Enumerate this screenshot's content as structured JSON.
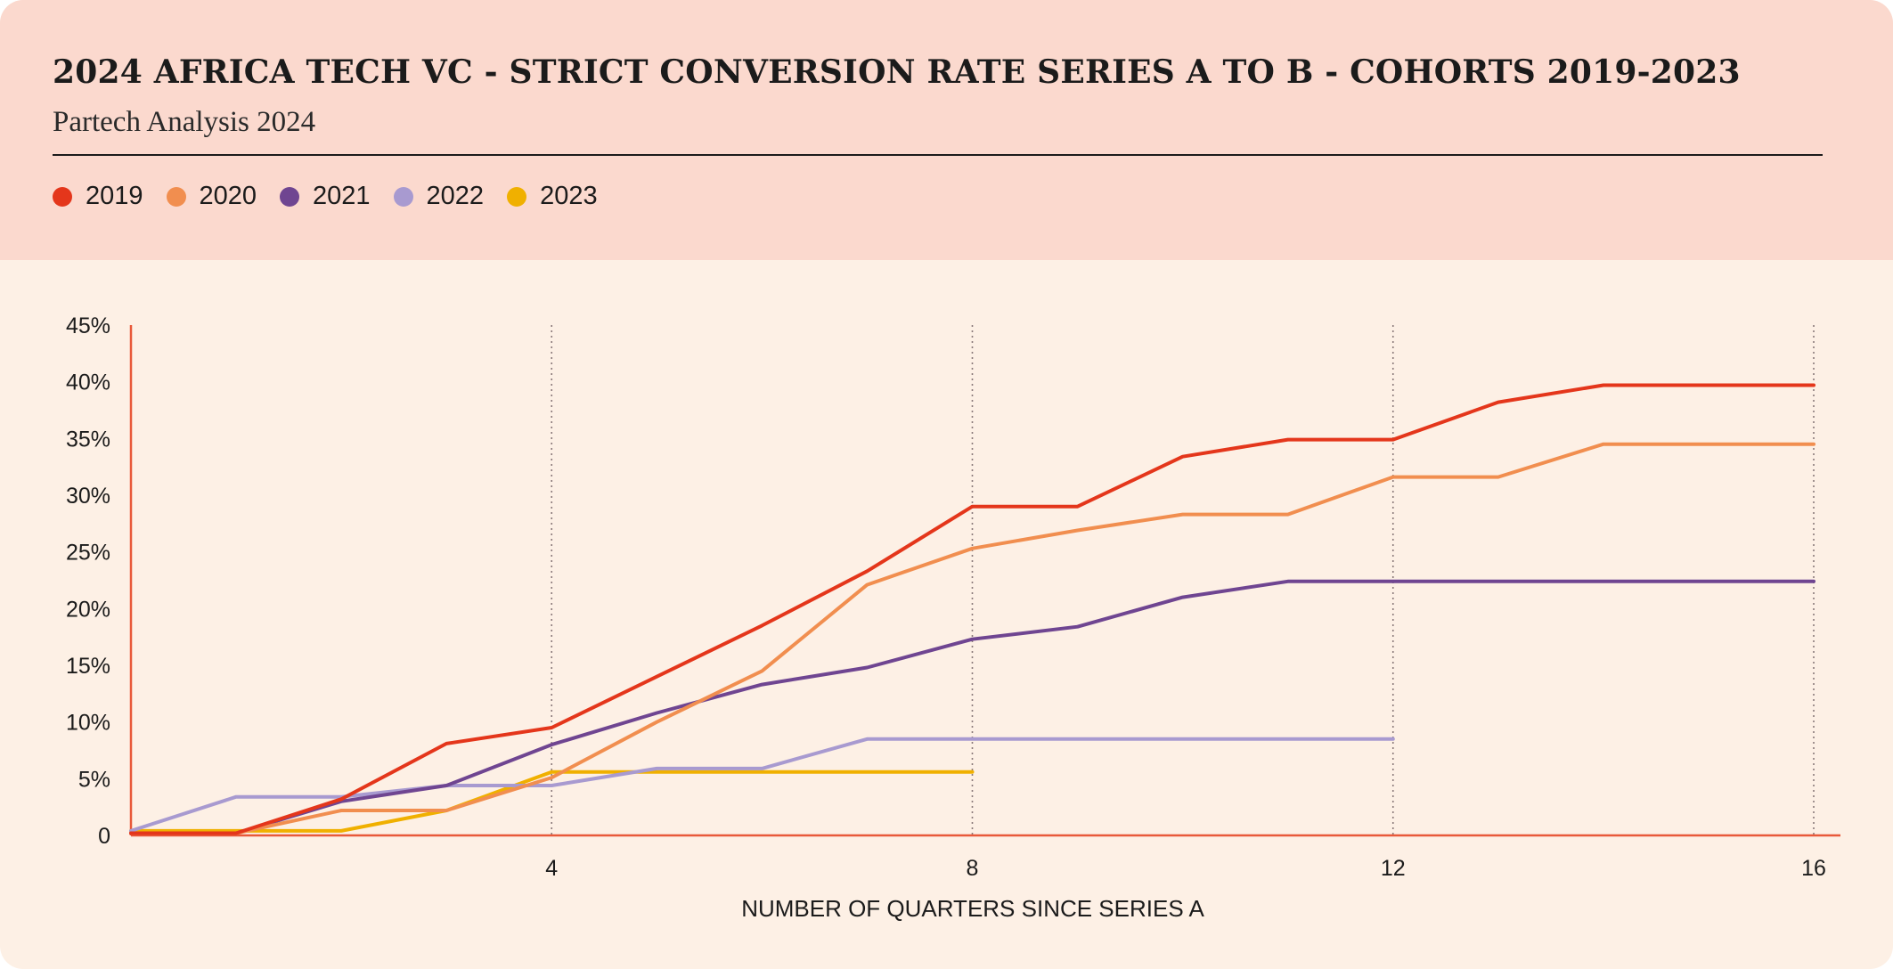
{
  "colors": {
    "header_bg": "#fbd9ce",
    "plot_bg": "#fdf0e5",
    "axis": "#e8593a",
    "grid": "#8a7a7a"
  },
  "chart_data": {
    "type": "line",
    "title": "2024 AFRICA TECH VC - STRICT CONVERSION RATE SERIES A TO B - COHORTS 2019-2023",
    "subtitle": "Partech Analysis 2024",
    "xlabel": "NUMBER OF QUARTERS SINCE SERIES A",
    "ylabel": "",
    "xlim": [
      0,
      16
    ],
    "ylim": [
      0,
      45
    ],
    "x_ticks": [
      4,
      8,
      12,
      16
    ],
    "x_tick_labels": [
      "4",
      "8",
      "12",
      "16"
    ],
    "y_ticks": [
      0,
      5,
      10,
      15,
      20,
      25,
      30,
      35,
      40,
      45
    ],
    "y_tick_labels": [
      "0",
      "5%",
      "10%",
      "15%",
      "20%",
      "25%",
      "30%",
      "35%",
      "40%",
      "45%"
    ],
    "grid": "vertical dotted lines at x ticks",
    "legend_position": "top-left",
    "series": [
      {
        "name": "2019",
        "color": "#e4361b",
        "x": [
          0,
          1,
          2,
          3,
          4,
          5,
          6,
          7,
          8,
          9,
          10,
          11,
          12,
          13,
          14,
          15,
          16
        ],
        "values": [
          0.2,
          0.2,
          3.2,
          8.1,
          9.5,
          14,
          18.5,
          23.3,
          29,
          29,
          33.4,
          34.9,
          34.9,
          38.2,
          39.7,
          39.7,
          39.7
        ]
      },
      {
        "name": "2020",
        "color": "#f18e4f",
        "x": [
          0,
          1,
          2,
          3,
          4,
          5,
          6,
          7,
          8,
          9,
          10,
          11,
          12,
          13,
          14,
          15,
          16
        ],
        "values": [
          0.2,
          0.2,
          2.2,
          2.2,
          5.1,
          10,
          14.5,
          22.1,
          25.3,
          26.9,
          28.3,
          28.3,
          31.6,
          31.6,
          34.5,
          34.5,
          34.5
        ]
      },
      {
        "name": "2021",
        "color": "#6f4591",
        "x": [
          0,
          1,
          2,
          3,
          4,
          5,
          6,
          7,
          8,
          9,
          10,
          11,
          12,
          13,
          14,
          15,
          16
        ],
        "values": [
          0.2,
          0.2,
          3,
          4.4,
          8,
          10.8,
          13.3,
          14.8,
          17.3,
          18.4,
          21,
          22.4,
          22.4,
          22.4,
          22.4,
          22.4,
          22.4
        ]
      },
      {
        "name": "2022",
        "color": "#a89ad0",
        "x": [
          0,
          1,
          2,
          3,
          4,
          5,
          6,
          7,
          8,
          9,
          10,
          11,
          12
        ],
        "values": [
          0.4,
          3.4,
          3.4,
          4.4,
          4.4,
          5.9,
          5.9,
          8.5,
          8.5,
          8.5,
          8.5,
          8.5,
          8.5
        ]
      },
      {
        "name": "2023",
        "color": "#f0b000",
        "x": [
          0,
          1,
          2,
          3,
          4,
          5,
          6,
          7,
          8
        ],
        "values": [
          0.4,
          0.4,
          0.4,
          2.2,
          5.6,
          5.6,
          5.6,
          5.6,
          5.6
        ]
      }
    ]
  }
}
